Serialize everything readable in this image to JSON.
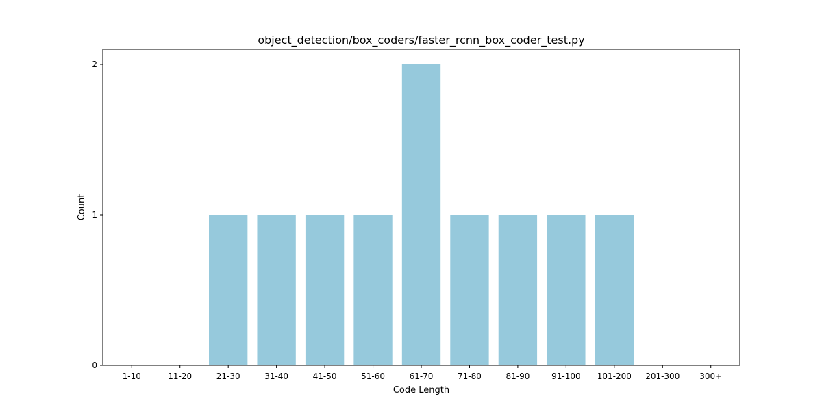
{
  "chart_data": {
    "type": "bar",
    "title": "object_detection/box_coders/faster_rcnn_box_coder_test.py",
    "xlabel": "Code Length",
    "ylabel": "Count",
    "categories": [
      "1-10",
      "11-20",
      "21-30",
      "31-40",
      "41-50",
      "51-60",
      "61-70",
      "71-80",
      "81-90",
      "91-100",
      "101-200",
      "201-300",
      "300+"
    ],
    "values": [
      0,
      0,
      1,
      1,
      1,
      1,
      2,
      1,
      1,
      1,
      1,
      0,
      0
    ],
    "ylim": [
      0,
      2.1
    ],
    "yticks": [
      0,
      1,
      2
    ],
    "bar_color": "#96c9dc",
    "grid": false,
    "legend": "none"
  }
}
